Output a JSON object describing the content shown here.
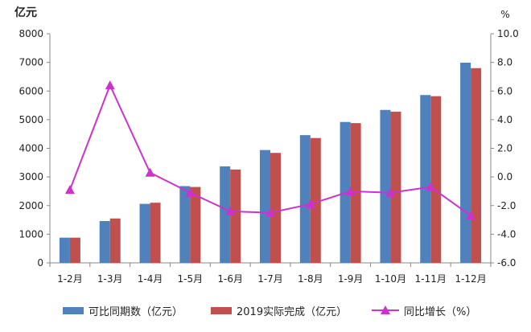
{
  "chart_data": {
    "type": "bar",
    "categories": [
      "1-2月",
      "1-3月",
      "1-4月",
      "1-5月",
      "1-6月",
      "1-7月",
      "1-8月",
      "1-9月",
      "1-10月",
      "1-11月",
      "1-12月"
    ],
    "series": [
      {
        "name": "可比同期数（亿元）",
        "type": "bar",
        "axis": "left",
        "color": "#4f81bd",
        "values": [
          880,
          1460,
          2060,
          2680,
          3370,
          3940,
          4460,
          4920,
          5340,
          5860,
          6990
        ]
      },
      {
        "name": "2019实际完成（亿元）",
        "type": "bar",
        "axis": "left",
        "color": "#c0504d",
        "values": [
          880,
          1550,
          2100,
          2650,
          3260,
          3840,
          4360,
          4880,
          5280,
          5820,
          6800
        ]
      },
      {
        "name": "同比增长（%）",
        "type": "line",
        "axis": "right",
        "color": "#cc33cc",
        "values": [
          -0.9,
          6.4,
          0.3,
          -1.1,
          -2.4,
          -2.5,
          -1.9,
          -1.0,
          -1.1,
          -0.7,
          -2.7
        ]
      }
    ],
    "left_axis": {
      "unit": "亿元",
      "ylim": [
        0,
        8000
      ],
      "ticks": [
        "0",
        "1000",
        "2000",
        "3000",
        "4000",
        "5000",
        "6000",
        "7000",
        "8000"
      ]
    },
    "right_axis": {
      "unit": "%",
      "ylim": [
        -6,
        10
      ],
      "ticks": [
        "-6.0",
        "-4.0",
        "-2.0",
        "0.0",
        "2.0",
        "4.0",
        "6.0",
        "8.0",
        "10.0"
      ]
    },
    "grid": false,
    "legend_position": "bottom"
  }
}
